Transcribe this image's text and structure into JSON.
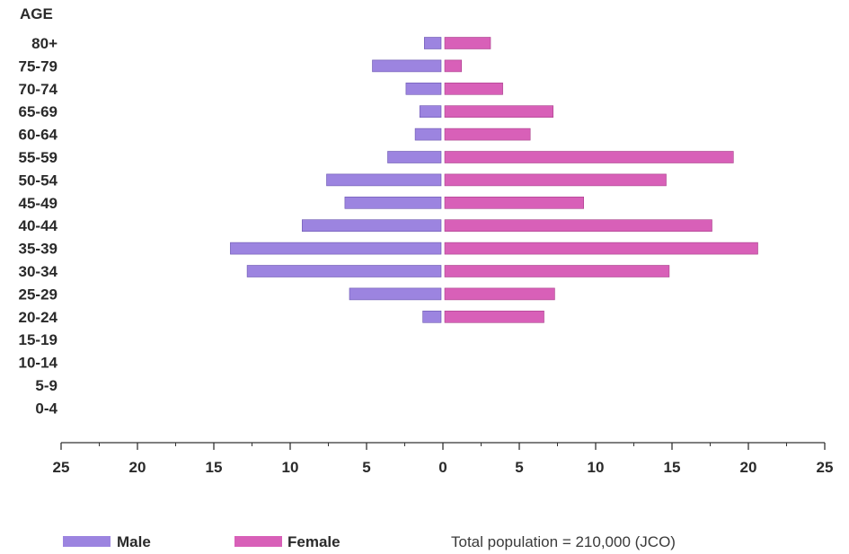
{
  "chart_data": {
    "type": "bar",
    "subtype": "population-pyramid",
    "orientation": "horizontal",
    "y_axis_title": "AGE",
    "categories": [
      "80+",
      "75-79",
      "70-74",
      "65-69",
      "60-64",
      "55-59",
      "50-54",
      "45-49",
      "40-44",
      "35-39",
      "30-34",
      "25-29",
      "20-24",
      "15-19",
      "10-14",
      "5-9",
      "0-4"
    ],
    "series": [
      {
        "name": "Male",
        "color": "#9c84e0",
        "side": "left",
        "values": [
          1.1,
          4.5,
          2.3,
          1.4,
          1.7,
          3.5,
          7.5,
          6.3,
          9.1,
          13.8,
          12.7,
          6.0,
          1.2,
          0,
          0,
          0,
          0
        ]
      },
      {
        "name": "Female",
        "color": "#d860b8",
        "side": "right",
        "values": [
          3.0,
          1.1,
          3.8,
          7.1,
          5.6,
          18.9,
          14.5,
          9.1,
          17.5,
          20.5,
          14.7,
          7.2,
          6.5,
          0,
          0,
          0,
          0
        ]
      }
    ],
    "x_ticks": [
      "25",
      "20",
      "15",
      "10",
      "5",
      "0",
      "5",
      "10",
      "15",
      "20",
      "25"
    ],
    "xlim": [
      -25,
      25
    ],
    "legend_position": "bottom-left",
    "grid": false,
    "note": "Total population = 210,000 (JCO)"
  }
}
